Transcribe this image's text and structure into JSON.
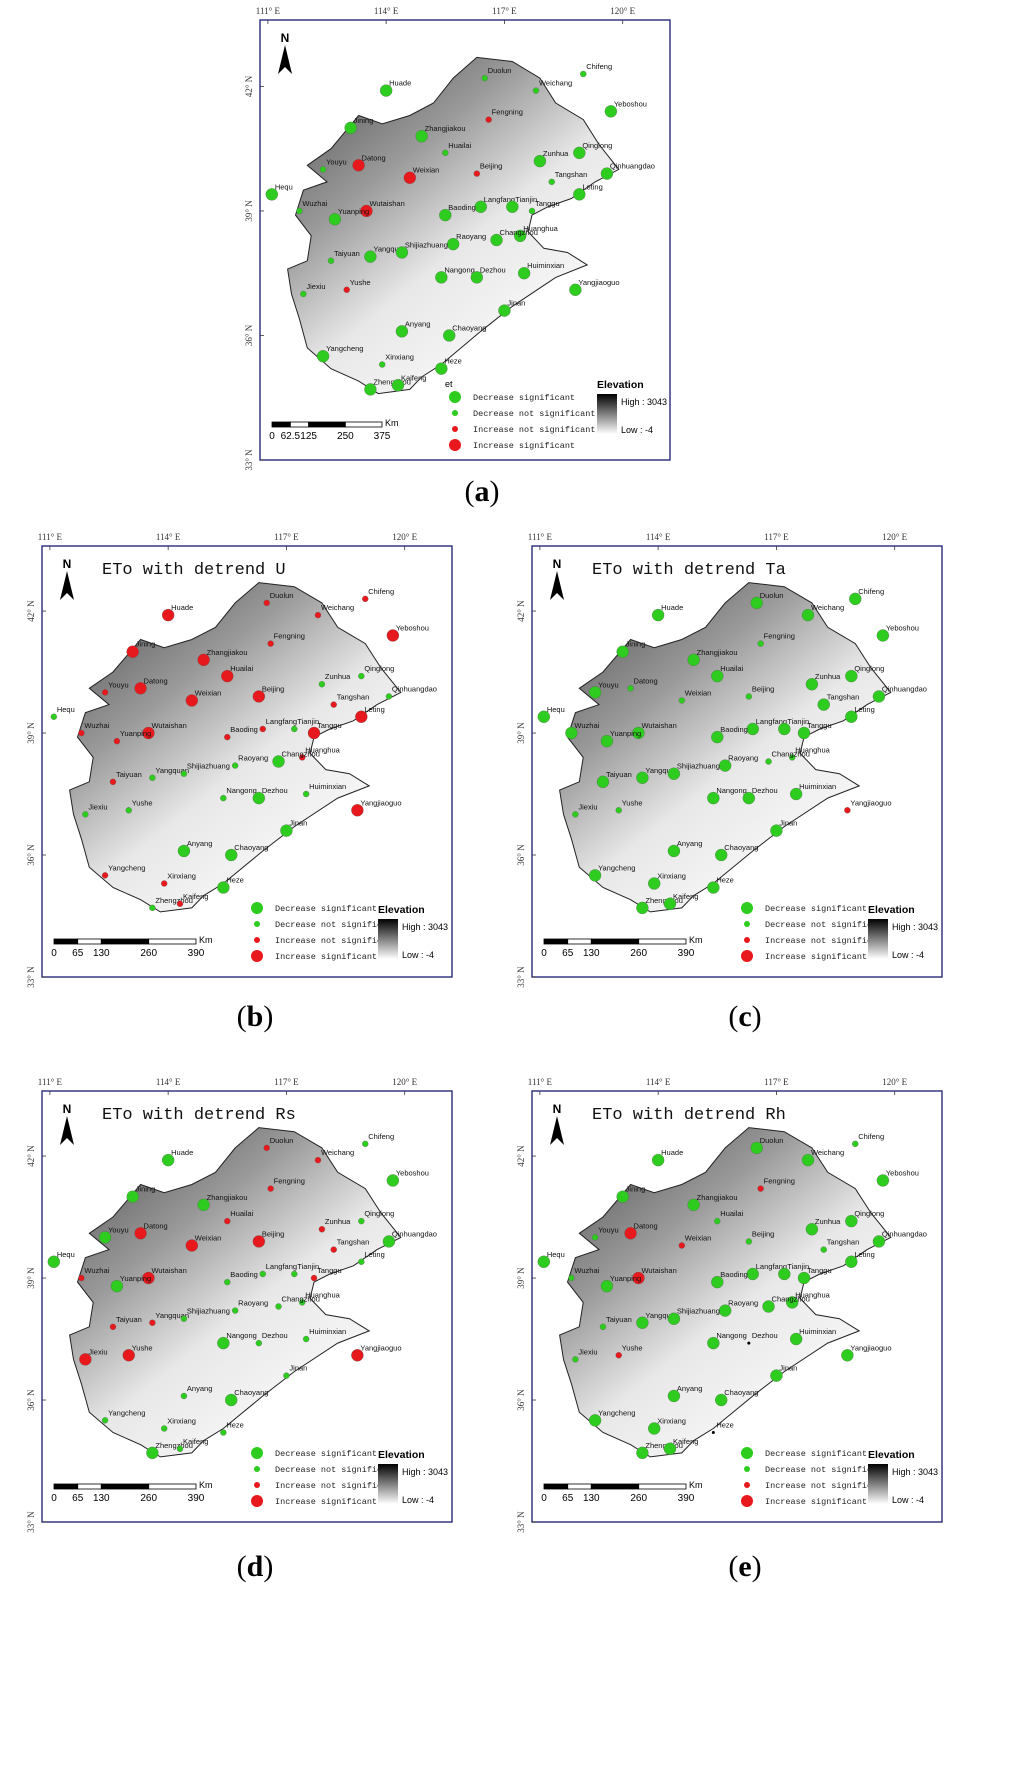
{
  "axes": {
    "lon_labels": [
      "111° E",
      "114° E",
      "117° E",
      "120° E"
    ],
    "lat_labels": [
      "42° N",
      "39° N",
      "36° N",
      "33° N"
    ]
  },
  "legend": {
    "title_a": "et",
    "items": [
      "Decrease significant",
      "Decrease not significant",
      "Increase not significant",
      "Increase significant"
    ],
    "colors": {
      "decrease": "#2ecc1f",
      "increase": "#e8191c"
    },
    "elevation_title": "Elevation",
    "elevation_high": "High : 3043",
    "elevation_low": "Low : -4"
  },
  "north_label": "N",
  "panels": [
    {
      "label": "a",
      "title": "",
      "scale_labels": [
        "0",
        "62.5",
        "125",
        "250",
        "375"
      ],
      "scale_unit": "Km"
    },
    {
      "label": "b",
      "title": "ETo with detrend U",
      "scale_labels": [
        "0",
        "65",
        "130",
        "260",
        "390"
      ],
      "scale_unit": "Km"
    },
    {
      "label": "c",
      "title": "ETo with detrend Ta",
      "scale_labels": [
        "0",
        "65",
        "130",
        "260",
        "390"
      ],
      "scale_unit": "Km"
    },
    {
      "label": "d",
      "title": "ETo with detrend Rs",
      "scale_labels": [
        "0",
        "65",
        "130",
        "260",
        "390"
      ],
      "scale_unit": "Km"
    },
    {
      "label": "e",
      "title": "ETo with detrend Rh",
      "scale_labels": [
        "0",
        "65",
        "130",
        "260",
        "390"
      ],
      "scale_unit": "Km"
    }
  ],
  "stations": [
    {
      "name": "Duolun",
      "lon": 116.5,
      "lat": 42.2
    },
    {
      "name": "Weichang",
      "lon": 117.8,
      "lat": 41.9
    },
    {
      "name": "Chifeng",
      "lon": 119.0,
      "lat": 42.3
    },
    {
      "name": "Huade",
      "lon": 114.0,
      "lat": 41.9
    },
    {
      "name": "Yeboshou",
      "lon": 119.7,
      "lat": 41.4
    },
    {
      "name": "Fengning",
      "lon": 116.6,
      "lat": 41.2
    },
    {
      "name": "Jining",
      "lon": 113.1,
      "lat": 41.0
    },
    {
      "name": "Zhangjiakou",
      "lon": 114.9,
      "lat": 40.8
    },
    {
      "name": "Huailai",
      "lon": 115.5,
      "lat": 40.4
    },
    {
      "name": "Qinglong",
      "lon": 118.9,
      "lat": 40.4
    },
    {
      "name": "Zunhua",
      "lon": 117.9,
      "lat": 40.2
    },
    {
      "name": "Beijing",
      "lon": 116.3,
      "lat": 39.9
    },
    {
      "name": "Youyu",
      "lon": 112.4,
      "lat": 40.0
    },
    {
      "name": "Datong",
      "lon": 113.3,
      "lat": 40.1
    },
    {
      "name": "Weixian",
      "lon": 114.6,
      "lat": 39.8
    },
    {
      "name": "Qinhuangdao",
      "lon": 119.6,
      "lat": 39.9
    },
    {
      "name": "Tangshan",
      "lon": 118.2,
      "lat": 39.7
    },
    {
      "name": "Leting",
      "lon": 118.9,
      "lat": 39.4
    },
    {
      "name": "Hequ",
      "lon": 111.1,
      "lat": 39.4
    },
    {
      "name": "Wuzhai",
      "lon": 111.8,
      "lat": 39.0
    },
    {
      "name": "Wutaishan",
      "lon": 113.5,
      "lat": 39.0
    },
    {
      "name": "Yuanping",
      "lon": 112.7,
      "lat": 38.8
    },
    {
      "name": "Langfang",
      "lon": 116.4,
      "lat": 39.1
    },
    {
      "name": "Tianjin",
      "lon": 117.2,
      "lat": 39.1
    },
    {
      "name": "Tanggu",
      "lon": 117.7,
      "lat": 39.0
    },
    {
      "name": "Baoding",
      "lon": 115.5,
      "lat": 38.9
    },
    {
      "name": "Raoyang",
      "lon": 115.7,
      "lat": 38.2
    },
    {
      "name": "Huanghua",
      "lon": 117.4,
      "lat": 38.4
    },
    {
      "name": "Changzhou",
      "lon": 116.8,
      "lat": 38.3
    },
    {
      "name": "Taiyuan",
      "lon": 112.6,
      "lat": 37.8
    },
    {
      "name": "Yangquan",
      "lon": 113.6,
      "lat": 37.9
    },
    {
      "name": "Shijiazhuang",
      "lon": 114.4,
      "lat": 38.0
    },
    {
      "name": "Nangong",
      "lon": 115.4,
      "lat": 37.4
    },
    {
      "name": "Dezhou",
      "lon": 116.3,
      "lat": 37.4
    },
    {
      "name": "Huiminxian",
      "lon": 117.5,
      "lat": 37.5
    },
    {
      "name": "Yangjiaoguo",
      "lon": 118.8,
      "lat": 37.1
    },
    {
      "name": "Jiexiu",
      "lon": 111.9,
      "lat": 37.0
    },
    {
      "name": "Yushe",
      "lon": 113.0,
      "lat": 37.1
    },
    {
      "name": "Jinan",
      "lon": 117.0,
      "lat": 36.6
    },
    {
      "name": "Anyang",
      "lon": 114.4,
      "lat": 36.1
    },
    {
      "name": "Chaoyang",
      "lon": 115.6,
      "lat": 36.0
    },
    {
      "name": "Yangcheng",
      "lon": 112.4,
      "lat": 35.5
    },
    {
      "name": "Xinxiang",
      "lon": 113.9,
      "lat": 35.3
    },
    {
      "name": "Heze",
      "lon": 115.4,
      "lat": 35.2
    },
    {
      "name": "Zhengzhou",
      "lon": 113.6,
      "lat": 34.7
    },
    {
      "name": "Kaifeng",
      "lon": 114.3,
      "lat": 34.8
    }
  ],
  "trends": {
    "a": {
      "Duolun": "dn",
      "Weichang": "dn",
      "Chifeng": "dn",
      "Huade": "ds",
      "Yeboshou": "ds",
      "Fengning": "in",
      "Jining": "ds",
      "Zhangjiakou": "ds",
      "Huailai": "dn",
      "Qinglong": "ds",
      "Zunhua": "ds",
      "Beijing": "in",
      "Youyu": "dn",
      "Datong": "is",
      "Weixian": "is",
      "Qinhuangdao": "ds",
      "Tangshan": "dn",
      "Leting": "ds",
      "Hequ": "ds",
      "Wuzhai": "dn",
      "Wutaishan": "is",
      "Yuanping": "ds",
      "Langfang": "ds",
      "Tianjin": "ds",
      "Tanggu": "dn",
      "Baoding": "ds",
      "Raoyang": "ds",
      "Huanghua": "ds",
      "Changzhou": "ds",
      "Taiyuan": "dn",
      "Yangquan": "ds",
      "Shijiazhuang": "ds",
      "Nangong": "ds",
      "Dezhou": "ds",
      "Huiminxian": "ds",
      "Yangjiaoguo": "ds",
      "Jiexiu": "dn",
      "Yushe": "in",
      "Jinan": "ds",
      "Anyang": "ds",
      "Chaoyang": "ds",
      "Yangcheng": "ds",
      "Xinxiang": "dn",
      "Heze": "ds",
      "Zhengzhou": "ds",
      "Kaifeng": "ds"
    },
    "b": {
      "Duolun": "in",
      "Weichang": "in",
      "Chifeng": "in",
      "Huade": "is",
      "Yeboshou": "is",
      "Fengning": "in",
      "Jining": "is",
      "Zhangjiakou": "is",
      "Huailai": "is",
      "Qinglong": "dn",
      "Zunhua": "dn",
      "Beijing": "is",
      "Youyu": "in",
      "Datong": "is",
      "Weixian": "is",
      "Qinhuangdao": "dn",
      "Tangshan": "in",
      "Leting": "is",
      "Hequ": "dn",
      "Wuzhai": "in",
      "Wutaishan": "is",
      "Yuanping": "in",
      "Langfang": "in",
      "Tianjin": "dn",
      "Tanggu": "is",
      "Baoding": "in",
      "Raoyang": "dn",
      "Huanghua": "in",
      "Changzhou": "ds",
      "Taiyuan": "in",
      "Yangquan": "dn",
      "Shijiazhuang": "dn",
      "Nangong": "dn",
      "Dezhou": "ds",
      "Huiminxian": "dn",
      "Yangjiaoguo": "is",
      "Jiexiu": "dn",
      "Yushe": "dn",
      "Jinan": "ds",
      "Anyang": "ds",
      "Chaoyang": "ds",
      "Yangcheng": "in",
      "Xinxiang": "in",
      "Heze": "ds",
      "Zhengzhou": "dn",
      "Kaifeng": "in"
    },
    "c": {
      "Duolun": "ds",
      "Weichang": "ds",
      "Chifeng": "ds",
      "Huade": "ds",
      "Yeboshou": "ds",
      "Fengning": "dn",
      "Jining": "ds",
      "Zhangjiakou": "ds",
      "Huailai": "ds",
      "Qinglong": "ds",
      "Zunhua": "ds",
      "Beijing": "dn",
      "Youyu": "ds",
      "Datong": "dn",
      "Weixian": "dn",
      "Qinhuangdao": "ds",
      "Tangshan": "ds",
      "Leting": "ds",
      "Hequ": "ds",
      "Wuzhai": "ds",
      "Wutaishan": "ds",
      "Yuanping": "ds",
      "Langfang": "ds",
      "Tianjin": "ds",
      "Tanggu": "ds",
      "Baoding": "ds",
      "Raoyang": "ds",
      "Huanghua": "dn",
      "Changzhou": "dn",
      "Taiyuan": "ds",
      "Yangquan": "ds",
      "Shijiazhuang": "ds",
      "Nangong": "ds",
      "Dezhou": "ds",
      "Huiminxian": "ds",
      "Yangjiaoguo": "in",
      "Jiexiu": "dn",
      "Yushe": "dn",
      "Jinan": "ds",
      "Anyang": "ds",
      "Chaoyang": "ds",
      "Yangcheng": "ds",
      "Xinxiang": "ds",
      "Heze": "ds",
      "Zhengzhou": "ds",
      "Kaifeng": "ds"
    },
    "d": {
      "Duolun": "in",
      "Weichang": "in",
      "Chifeng": "dn",
      "Huade": "ds",
      "Yeboshou": "ds",
      "Fengning": "in",
      "Jining": "ds",
      "Zhangjiakou": "ds",
      "Huailai": "in",
      "Qinglong": "dn",
      "Zunhua": "in",
      "Beijing": "is",
      "Youyu": "ds",
      "Datong": "is",
      "Weixian": "is",
      "Qinhuangdao": "ds",
      "Tangshan": "in",
      "Leting": "dn",
      "Hequ": "ds",
      "Wuzhai": "in",
      "Wutaishan": "is",
      "Yuanping": "ds",
      "Langfang": "dn",
      "Tianjin": "dn",
      "Tanggu": "in",
      "Baoding": "dn",
      "Raoyang": "dn",
      "Huanghua": "dn",
      "Changzhou": "dn",
      "Taiyuan": "in",
      "Yangquan": "in",
      "Shijiazhuang": "dn",
      "Nangong": "ds",
      "Dezhou": "dn",
      "Huiminxian": "dn",
      "Yangjiaoguo": "is",
      "Jiexiu": "is",
      "Yushe": "is",
      "Jinan": "dn",
      "Anyang": "dn",
      "Chaoyang": "ds",
      "Yangcheng": "dn",
      "Xinxiang": "dn",
      "Heze": "dn",
      "Zhengzhou": "ds",
      "Kaifeng": "dn"
    },
    "e": {
      "Duolun": "ds",
      "Weichang": "ds",
      "Chifeng": "dn",
      "Huade": "ds",
      "Yeboshou": "ds",
      "Fengning": "in",
      "Jining": "ds",
      "Zhangjiakou": "ds",
      "Huailai": "dn",
      "Qinglong": "ds",
      "Zunhua": "ds",
      "Beijing": "dn",
      "Youyu": "dn",
      "Datong": "is",
      "Weixian": "in",
      "Qinhuangdao": "ds",
      "Tangshan": "dn",
      "Leting": "ds",
      "Hequ": "ds",
      "Wuzhai": "dn",
      "Wutaishan": "is",
      "Yuanping": "ds",
      "Langfang": "ds",
      "Tianjin": "ds",
      "Tanggu": "ds",
      "Baoding": "ds",
      "Raoyang": "ds",
      "Huanghua": "ds",
      "Changzhou": "ds",
      "Taiyuan": "dn",
      "Yangquan": "ds",
      "Shijiazhuang": "ds",
      "Nangong": "ds",
      "Dezhou": "none",
      "Huiminxian": "ds",
      "Yangjiaoguo": "ds",
      "Jiexiu": "dn",
      "Yushe": "in",
      "Jinan": "ds",
      "Anyang": "ds",
      "Chaoyang": "ds",
      "Yangcheng": "ds",
      "Xinxiang": "ds",
      "Heze": "none",
      "Zhengzhou": "ds",
      "Kaifeng": "ds"
    }
  }
}
